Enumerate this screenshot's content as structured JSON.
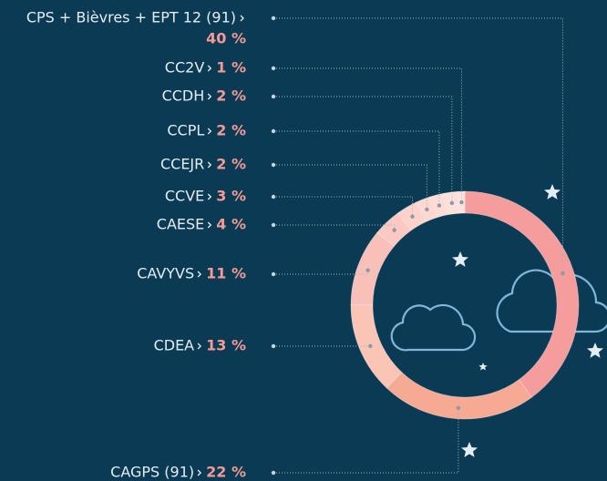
{
  "chart_data": {
    "type": "pie",
    "categories": [
      "CPS + Bièvres + EPT 12 (91)",
      "CC2V",
      "CCDH",
      "CCPL",
      "CCEJR",
      "CCVE",
      "CAESE",
      "CAVYVS",
      "CDEA",
      "CAGPS (91)"
    ],
    "values": [
      40,
      1,
      2,
      2,
      2,
      3,
      4,
      11,
      13,
      22
    ],
    "value_labels": [
      "40 %",
      "1 %",
      "2 %",
      "2 %",
      "2 %",
      "3 %",
      "4 %",
      "11 %",
      "13 %",
      "22 %"
    ],
    "colors": [
      "#f59c9c",
      "#fde2dc",
      "#fde0da",
      "#fddcd6",
      "#fcd8d1",
      "#fcd2ca",
      "#fbc9c2",
      "#f9bfb9",
      "#fac5b5",
      "#f7aa93"
    ]
  }
}
